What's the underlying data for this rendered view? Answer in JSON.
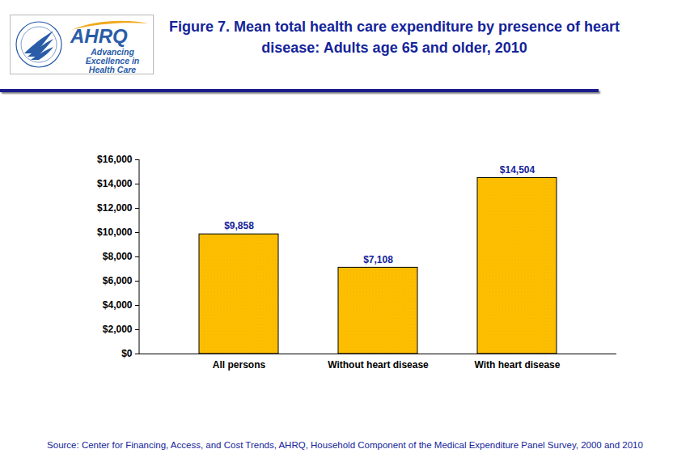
{
  "chart_data": {
    "type": "bar",
    "title": "Figure 7. Mean total health care expenditure by presence of heart disease: Adults age 65 and older, 2010",
    "logo": {
      "name": "AHRQ",
      "tagline": "Advancing Excellence in Health Care"
    },
    "source": "Source: Center for Financing, Access, and Cost Trends, AHRQ, Household Component of the Medical Expenditure Panel Survey, 2000 and 2010",
    "categories": [
      "All persons",
      "Without heart disease",
      "With heart disease"
    ],
    "values": [
      9858,
      7108,
      14504
    ],
    "value_labels": [
      "$9,858",
      "$7,108",
      "$14,504"
    ],
    "color": "#FFC000",
    "ylim": [
      0,
      16000
    ],
    "yticks": [
      {
        "value": 0,
        "label": "$0"
      },
      {
        "value": 2000,
        "label": "$2,000"
      },
      {
        "value": 4000,
        "label": "$4,000"
      },
      {
        "value": 6000,
        "label": "$6,000"
      },
      {
        "value": 8000,
        "label": "$8,000"
      },
      {
        "value": 10000,
        "label": "$10,000"
      },
      {
        "value": 12000,
        "label": "$12,000"
      },
      {
        "value": 14000,
        "label": "$14,000"
      },
      {
        "value": 16000,
        "label": "$16,000"
      }
    ],
    "data_labels": true,
    "grid": false
  }
}
